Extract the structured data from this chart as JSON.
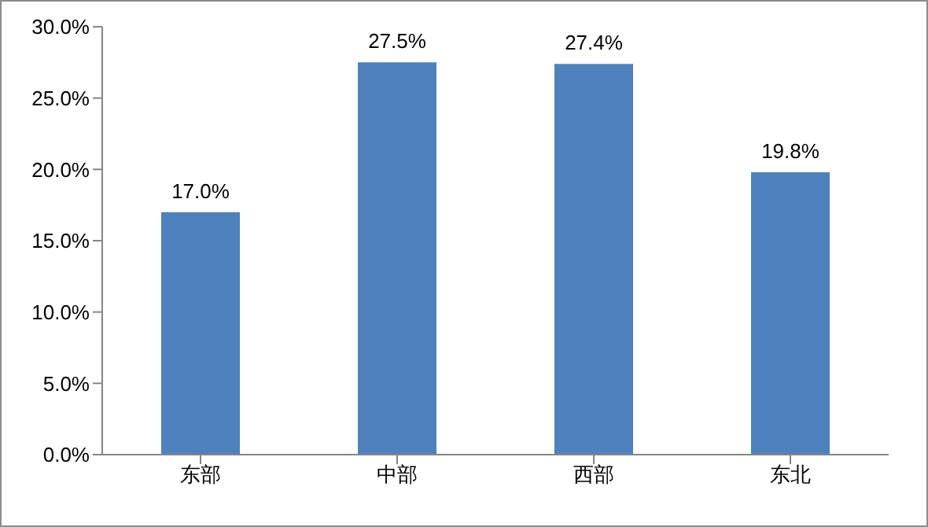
{
  "chart_data": {
    "type": "bar",
    "categories": [
      "东部",
      "中部",
      "西部",
      "东北"
    ],
    "values": [
      17.0,
      27.5,
      27.4,
      19.8
    ],
    "value_labels": [
      "17.0%",
      "27.5%",
      "27.4%",
      "19.8%"
    ],
    "color": "#4f81bd",
    "ylim": [
      0,
      30
    ],
    "yticks": [
      {
        "value": 0,
        "label": "0.0%"
      },
      {
        "value": 5,
        "label": "5.0%"
      },
      {
        "value": 10,
        "label": "10.0%"
      },
      {
        "value": 15,
        "label": "15.0%"
      },
      {
        "value": 20,
        "label": "20.0%"
      },
      {
        "value": 25,
        "label": "25.0%"
      },
      {
        "value": 30,
        "label": "30.0%"
      }
    ],
    "grid": false,
    "legend": false
  }
}
